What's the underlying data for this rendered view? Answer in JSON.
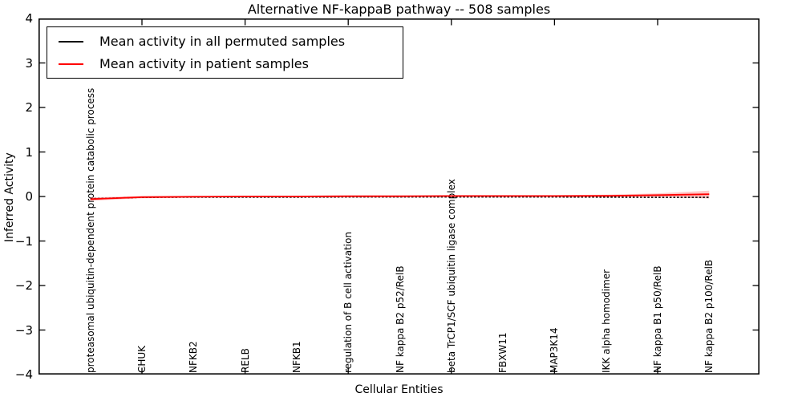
{
  "chart_data": {
    "type": "line",
    "title": "Alternative NF-kappaB pathway -- 508 samples",
    "xlabel": "Cellular Entities",
    "ylabel": "Inferred Activity",
    "ylim": [
      -4,
      4
    ],
    "ytick_labels": [
      "4",
      "3",
      "2",
      "1",
      "0",
      "−1",
      "−2",
      "−3",
      "−4"
    ],
    "yticks": [
      4,
      3,
      2,
      1,
      0,
      -1,
      -2,
      -3,
      -4
    ],
    "grid": false,
    "legend_position": "upper left",
    "categories": [
      "proteasomal ubiquitin-dependent protein catabolic process",
      "CHUK",
      "NFKB2",
      "RELB",
      "NFKB1",
      "regulation of B cell activation",
      "NF kappa B2 p52/RelB",
      "beta TrCP1/SCF ubiquitin ligase complex",
      "FBXW11",
      "MAP3K14",
      "IKK alpha homodimer",
      "NF kappa B1 p50/RelB",
      "NF kappa B2 p100/RelB"
    ],
    "series": [
      {
        "name": "Mean activity in all permuted samples",
        "color": "#000000",
        "style": "dashed",
        "values": [
          -0.05,
          -0.02,
          -0.015,
          -0.015,
          -0.015,
          -0.01,
          -0.01,
          -0.01,
          -0.01,
          -0.01,
          -0.015,
          -0.02,
          -0.02
        ]
      },
      {
        "name": "Mean activity in patient samples",
        "color": "#ff0000",
        "style": "solid",
        "values": [
          -0.06,
          -0.015,
          -0.005,
          0.0,
          0.0,
          0.005,
          0.005,
          0.01,
          0.01,
          0.01,
          0.015,
          0.03,
          0.05
        ]
      }
    ],
    "patient_band": {
      "color": "#ff9999",
      "upper": [
        -0.02,
        0.01,
        0.015,
        0.02,
        0.02,
        0.025,
        0.025,
        0.03,
        0.03,
        0.03,
        0.04,
        0.07,
        0.13
      ],
      "lower": [
        -0.1,
        -0.04,
        -0.025,
        -0.02,
        -0.02,
        -0.015,
        -0.015,
        -0.01,
        -0.01,
        -0.01,
        -0.01,
        -0.01,
        -0.045
      ]
    },
    "legend": [
      {
        "label": "Mean activity in all permuted samples",
        "color": "#000000"
      },
      {
        "label": "Mean activity in patient samples",
        "color": "#ff0000"
      }
    ]
  }
}
